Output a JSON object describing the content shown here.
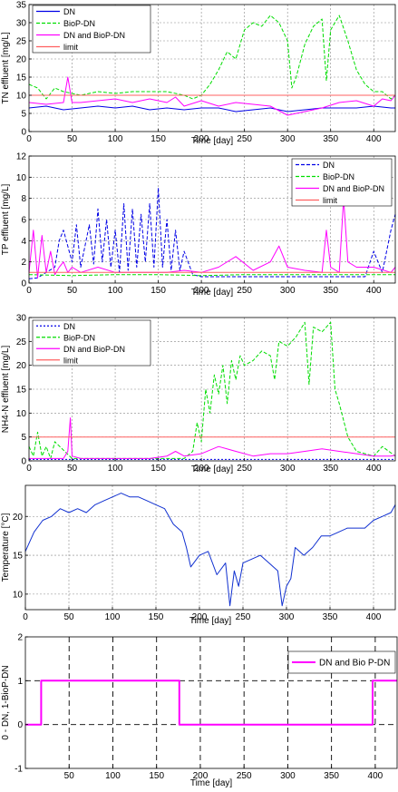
{
  "colors": {
    "blue": "#0000e6",
    "green": "#00dd00",
    "magenta": "#ff00ff",
    "red": "#ff6060",
    "temp": "#1030d0"
  },
  "chart_data": [
    {
      "type": "line",
      "ylabel": "TN effluent  [mg/L]",
      "xlabel": "Time [day]",
      "xlim": [
        0,
        425
      ],
      "ylim": [
        0,
        35
      ],
      "xticks": [
        0,
        50,
        100,
        150,
        200,
        250,
        300,
        350,
        400
      ],
      "yticks": [
        0,
        5,
        10,
        15,
        20,
        25,
        30,
        35
      ],
      "grid": true,
      "legend_position": "top-left",
      "series": [
        {
          "name": "DN",
          "color": "blue",
          "dash": "",
          "x": [
            0,
            20,
            40,
            60,
            80,
            100,
            120,
            140,
            160,
            180,
            200,
            220,
            240,
            260,
            280,
            300,
            320,
            340,
            360,
            380,
            400,
            420,
            425
          ],
          "y": [
            6.5,
            7,
            6,
            6.5,
            7,
            6.5,
            7,
            6,
            6.5,
            6,
            6.5,
            6.5,
            5.5,
            6,
            6.5,
            5.5,
            6,
            6.5,
            6.5,
            6.5,
            7,
            6.5,
            6.5
          ]
        },
        {
          "name": "BioP-DN",
          "color": "green",
          "dash": "4,2",
          "x": [
            0,
            10,
            20,
            30,
            40,
            50,
            60,
            80,
            100,
            120,
            140,
            160,
            180,
            190,
            200,
            210,
            220,
            230,
            240,
            250,
            260,
            270,
            280,
            290,
            300,
            305,
            310,
            320,
            330,
            340,
            345,
            350,
            360,
            370,
            380,
            390,
            400,
            410,
            420,
            425
          ],
          "y": [
            13,
            12,
            9,
            12,
            11,
            10.5,
            10,
            11,
            10.5,
            11,
            11,
            11,
            10,
            9,
            10,
            13,
            17,
            22,
            20,
            28,
            30,
            29,
            32,
            30,
            25,
            12,
            15,
            24,
            29,
            31,
            14,
            28,
            32,
            25,
            17,
            13,
            11,
            11,
            9,
            10
          ]
        },
        {
          "name": "DN and BioP-DN",
          "color": "magenta",
          "dash": "",
          "x": [
            0,
            20,
            40,
            45,
            50,
            60,
            80,
            100,
            120,
            140,
            160,
            170,
            180,
            200,
            220,
            240,
            260,
            280,
            300,
            320,
            340,
            360,
            380,
            400,
            410,
            420,
            425
          ],
          "y": [
            8,
            7.5,
            8,
            15,
            8,
            8,
            8.5,
            9,
            8,
            9,
            8,
            9.5,
            7,
            8.5,
            7,
            8,
            7.5,
            7,
            4.5,
            5.5,
            6.5,
            8,
            8.5,
            7,
            9,
            8.5,
            10
          ]
        },
        {
          "name": "limit",
          "color": "red",
          "dash": "",
          "x": [
            0,
            425
          ],
          "y": [
            10,
            10
          ]
        }
      ]
    },
    {
      "type": "line",
      "ylabel": "TP effluent  [mg/L]",
      "xlabel": "Time [day]",
      "xlim": [
        0,
        425
      ],
      "ylim": [
        0,
        12
      ],
      "xticks": [
        0,
        50,
        100,
        150,
        200,
        250,
        300,
        350,
        400
      ],
      "yticks": [
        0,
        2,
        4,
        6,
        8,
        10,
        12
      ],
      "grid": true,
      "legend_position": "top-right",
      "series": [
        {
          "name": "DN",
          "color": "blue",
          "dash": "4,2",
          "x": [
            0,
            10,
            20,
            30,
            35,
            40,
            50,
            55,
            60,
            70,
            75,
            80,
            85,
            90,
            95,
            100,
            105,
            110,
            115,
            120,
            125,
            130,
            135,
            140,
            145,
            150,
            155,
            160,
            165,
            170,
            175,
            180,
            190,
            200,
            250,
            300,
            350,
            390,
            400,
            410,
            420,
            425
          ],
          "y": [
            0.4,
            0.5,
            1,
            1.5,
            4,
            5,
            2,
            5.5,
            1.5,
            5.5,
            1.8,
            7,
            2,
            6,
            1.5,
            5,
            1,
            7.5,
            1.2,
            7,
            1.5,
            6.5,
            2,
            7.5,
            1.5,
            9,
            1.5,
            6,
            1.2,
            5,
            1.2,
            3,
            0.8,
            0.6,
            0.6,
            0.6,
            0.6,
            0.6,
            3,
            1,
            5,
            6.5
          ]
        },
        {
          "name": "BioP-DN",
          "color": "green",
          "dash": "4,2",
          "x": [
            0,
            50,
            100,
            150,
            200,
            250,
            300,
            350,
            400,
            425
          ],
          "y": [
            0.8,
            0.7,
            0.8,
            0.8,
            0.7,
            0.8,
            0.8,
            0.8,
            0.8,
            0.8
          ]
        },
        {
          "name": "DN and BioP-DN",
          "color": "magenta",
          "dash": "",
          "x": [
            0,
            5,
            10,
            15,
            20,
            25,
            30,
            35,
            40,
            45,
            50,
            60,
            80,
            100,
            120,
            140,
            160,
            180,
            200,
            220,
            240,
            260,
            280,
            290,
            300,
            320,
            340,
            345,
            350,
            360,
            365,
            370,
            380,
            400,
            420,
            425
          ],
          "y": [
            1,
            5,
            0.5,
            4.5,
            1,
            3,
            0.8,
            1.5,
            2,
            1,
            1.5,
            1,
            1.5,
            1,
            1,
            1,
            1,
            1.2,
            1,
            1.5,
            2.5,
            1.2,
            2,
            3.5,
            1.5,
            1.2,
            1,
            5,
            1.5,
            1,
            8,
            2,
            1.5,
            1.5,
            1,
            1.5
          ]
        },
        {
          "name": "limit",
          "color": "red",
          "dash": "",
          "x": [
            0,
            425
          ],
          "y": [
            1,
            1
          ]
        }
      ]
    },
    {
      "type": "line",
      "ylabel": "NH4-N effluent  [mg/L]",
      "xlabel": "Time [day]",
      "xlim": [
        0,
        425
      ],
      "ylim": [
        0,
        30
      ],
      "xticks": [
        0,
        50,
        100,
        150,
        200,
        250,
        300,
        350,
        400
      ],
      "yticks": [
        0,
        5,
        10,
        15,
        20,
        25,
        30
      ],
      "grid": true,
      "legend_position": "top-left",
      "series": [
        {
          "name": "DN",
          "color": "blue",
          "dash": "2,2",
          "x": [
            0,
            50,
            100,
            150,
            200,
            250,
            300,
            350,
            400,
            425
          ],
          "y": [
            0.3,
            0.3,
            0.3,
            0.3,
            0.3,
            0.3,
            0.3,
            0.3,
            0.3,
            0.3
          ]
        },
        {
          "name": "BioP-DN",
          "color": "green",
          "dash": "4,2",
          "x": [
            0,
            5,
            10,
            15,
            20,
            25,
            30,
            50,
            100,
            150,
            180,
            190,
            195,
            200,
            205,
            210,
            215,
            220,
            225,
            230,
            235,
            240,
            245,
            250,
            260,
            270,
            280,
            285,
            290,
            300,
            310,
            320,
            325,
            330,
            340,
            350,
            355,
            360,
            370,
            380,
            390,
            400,
            410,
            425
          ],
          "y": [
            3,
            1,
            6,
            1,
            3,
            0.5,
            4,
            0.5,
            0.5,
            0.5,
            0.5,
            2,
            8,
            4,
            15,
            10,
            18,
            14,
            20,
            12,
            21,
            17,
            22,
            20,
            21,
            23,
            22,
            17,
            25,
            24,
            26,
            29,
            16,
            28,
            27,
            29,
            15,
            12,
            5,
            2,
            1.5,
            1,
            3,
            1
          ]
        },
        {
          "name": "DN and BioP-DN",
          "color": "magenta",
          "dash": "",
          "x": [
            0,
            20,
            40,
            45,
            48,
            50,
            60,
            80,
            100,
            120,
            140,
            160,
            170,
            180,
            200,
            220,
            240,
            260,
            280,
            300,
            320,
            340,
            360,
            380,
            400,
            420,
            425
          ],
          "y": [
            0.5,
            0.5,
            0.5,
            2,
            9,
            1,
            0.5,
            0.5,
            0.5,
            0.5,
            0.5,
            1,
            2,
            1,
            1.5,
            3,
            2,
            1,
            1.5,
            1.5,
            2,
            2.5,
            2,
            1.5,
            1,
            1,
            1.2
          ]
        },
        {
          "name": "limit",
          "color": "red",
          "dash": "",
          "x": [
            0,
            425
          ],
          "y": [
            5,
            5
          ]
        }
      ]
    },
    {
      "type": "line",
      "ylabel": "Temperature  [°C]",
      "xlabel": "Time [day]",
      "xlim": [
        0,
        425
      ],
      "ylim": [
        8,
        24
      ],
      "xticks": [
        0,
        50,
        100,
        150,
        200,
        250,
        300,
        350,
        400
      ],
      "yticks": [
        10,
        15,
        20
      ],
      "grid": true,
      "series": [
        {
          "name": "",
          "color": "temp",
          "dash": "",
          "x": [
            0,
            10,
            20,
            30,
            40,
            50,
            60,
            70,
            80,
            90,
            100,
            110,
            120,
            130,
            140,
            150,
            160,
            170,
            180,
            185,
            190,
            200,
            210,
            220,
            230,
            235,
            240,
            245,
            250,
            260,
            270,
            280,
            290,
            295,
            300,
            305,
            310,
            320,
            330,
            340,
            350,
            360,
            370,
            380,
            390,
            400,
            410,
            420,
            425
          ],
          "y": [
            15.5,
            18,
            19.5,
            20,
            21,
            20.5,
            21,
            20.5,
            21.5,
            22,
            22.5,
            23,
            22.5,
            22.5,
            22,
            21.5,
            21,
            19,
            18,
            16,
            13.5,
            15,
            15.5,
            12.5,
            14,
            8.5,
            13,
            11,
            14,
            14.5,
            15,
            14,
            13,
            8.5,
            11,
            12,
            16,
            15,
            16,
            17.5,
            17.5,
            18,
            18.5,
            18.5,
            18.5,
            19.5,
            20,
            20.5,
            21.5
          ]
        }
      ]
    },
    {
      "type": "line",
      "ylabel": "0 - DN, 1-BioP-DN",
      "xlabel": "Time [day]",
      "xlim": [
        0,
        425
      ],
      "ylim": [
        -1,
        2
      ],
      "xticks": [
        50,
        100,
        150,
        200,
        250,
        300,
        350,
        400
      ],
      "yticks": [
        -1,
        0,
        1,
        2
      ],
      "grid": true,
      "legend_position": "top-right",
      "series": [
        {
          "name": "DN and Bio P-DN",
          "color": "magenta",
          "dash": "",
          "x": [
            0,
            18,
            18,
            176,
            176,
            397,
            397,
            425
          ],
          "y": [
            0,
            0,
            1,
            1,
            0,
            0,
            1,
            1
          ]
        }
      ]
    }
  ]
}
